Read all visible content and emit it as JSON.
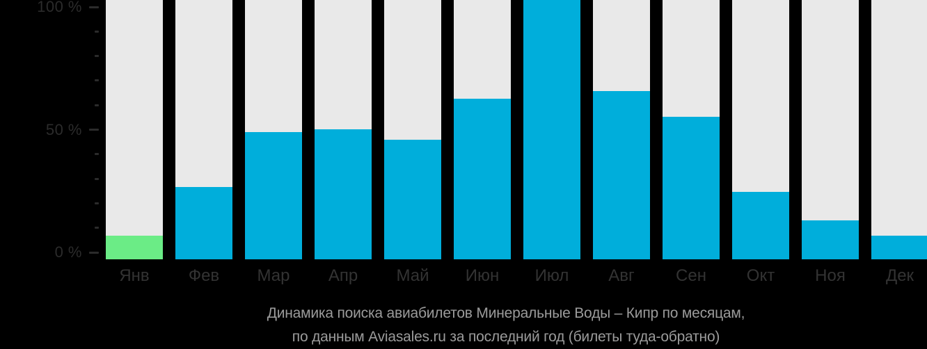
{
  "caption": {
    "line1": "Динамика поиска авиабилетов Минеральные Воды – Кипр по месяцам,",
    "line2": "по данным Aviasales.ru за последний год (билеты туда-обратно)"
  },
  "colors": {
    "background": "#000000",
    "bar_track": "#E9E9E9",
    "bar_default": "#00AEDB",
    "bar_highlight": "#6BEC86",
    "axis_text": "#2B2B2B",
    "month_text": "#333333",
    "caption_text": "#9B9B9B"
  },
  "chart_data": {
    "type": "bar",
    "title": "Динамика поиска авиабилетов Минеральные Воды – Кипр по месяцам, по данным Aviasales.ru за последний год (билеты туда-обратно)",
    "categories": [
      "Янв",
      "Фев",
      "Мар",
      "Апр",
      "Май",
      "Июн",
      "Июл",
      "Авг",
      "Сен",
      "Окт",
      "Ноя",
      "Дек"
    ],
    "values": [
      9,
      28,
      49,
      50,
      46,
      62,
      100,
      65,
      55,
      26,
      15,
      9
    ],
    "unit": "%",
    "xlabel": "",
    "ylabel": "",
    "ylim": [
      0,
      100
    ],
    "yticks_major": [
      {
        "value": 0,
        "label": "0 %"
      },
      {
        "value": 50,
        "label": "50 %"
      },
      {
        "value": 100,
        "label": "100 %"
      }
    ],
    "ytick_minor_step": 10,
    "highlight_index": 0,
    "grid": false,
    "legend": "none",
    "background_bars_full_height": true
  }
}
